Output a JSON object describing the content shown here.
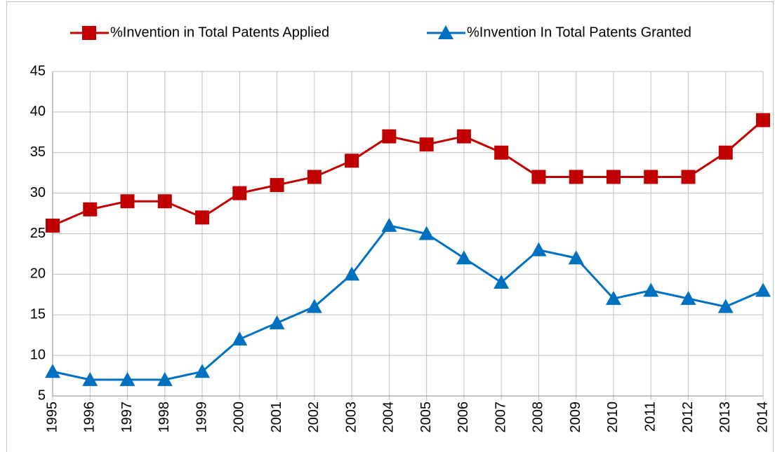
{
  "chart_data": {
    "type": "line",
    "categories": [
      "1995",
      "1996",
      "1997",
      "1998",
      "1999",
      "2000",
      "2001",
      "2002",
      "2003",
      "2004",
      "2005",
      "2006",
      "2007",
      "2008",
      "2009",
      "2010",
      "2011",
      "2012",
      "2013",
      "2014"
    ],
    "series": [
      {
        "name": "%Invention in Total Patents Applied",
        "color": "#c00000",
        "marker": "square",
        "values": [
          26,
          28,
          29,
          29,
          27,
          30,
          31,
          32,
          34,
          37,
          36,
          37,
          35,
          32,
          32,
          32,
          32,
          32,
          35,
          39
        ]
      },
      {
        "name": "%Invention In Total Patents Granted",
        "color": "#0070c0",
        "marker": "triangle",
        "values": [
          8,
          7,
          7,
          7,
          8,
          12,
          14,
          16,
          20,
          26,
          25,
          22,
          19,
          23,
          22,
          17,
          18,
          17,
          16,
          18
        ]
      }
    ],
    "ylim": [
      5,
      45
    ],
    "yticks": [
      5,
      10,
      15,
      20,
      25,
      30,
      35,
      40,
      45
    ],
    "grid": true,
    "legend": "top"
  }
}
